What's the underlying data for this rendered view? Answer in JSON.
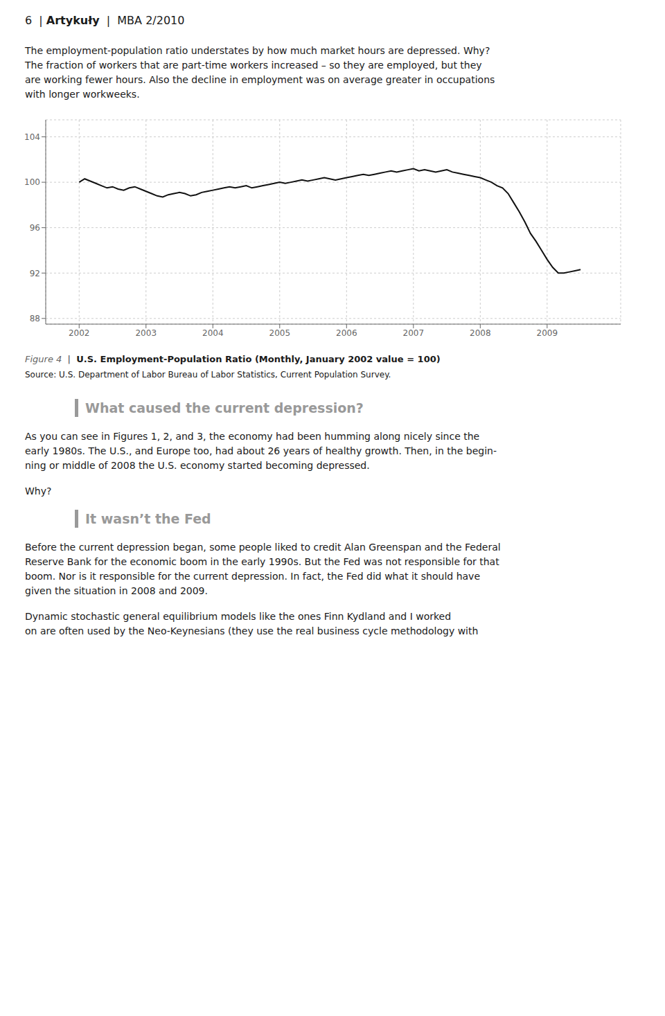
{
  "page_header": [
    "6  | ",
    "Artykuły",
    "  |  MBA 2/2010"
  ],
  "intro": [
    "The employment-population ratio understates by how much market hours are depressed. Why?",
    "The fraction of workers that are part-time workers increased – so they are employed, but they",
    "are working fewer hours. Also the decline in employment was on average greater in occupations",
    "with longer workweeks."
  ],
  "chart_data": {
    "type": "line",
    "x": [
      2002.0,
      2002.083,
      2002.167,
      2002.25,
      2002.333,
      2002.417,
      2002.5,
      2002.583,
      2002.667,
      2002.75,
      2002.833,
      2002.917,
      2003.0,
      2003.083,
      2003.167,
      2003.25,
      2003.333,
      2003.417,
      2003.5,
      2003.583,
      2003.667,
      2003.75,
      2003.833,
      2003.917,
      2004.0,
      2004.083,
      2004.167,
      2004.25,
      2004.333,
      2004.417,
      2004.5,
      2004.583,
      2004.667,
      2004.75,
      2004.833,
      2004.917,
      2005.0,
      2005.083,
      2005.167,
      2005.25,
      2005.333,
      2005.417,
      2005.5,
      2005.583,
      2005.667,
      2005.75,
      2005.833,
      2005.917,
      2006.0,
      2006.083,
      2006.167,
      2006.25,
      2006.333,
      2006.417,
      2006.5,
      2006.583,
      2006.667,
      2006.75,
      2006.833,
      2006.917,
      2007.0,
      2007.083,
      2007.167,
      2007.25,
      2007.333,
      2007.417,
      2007.5,
      2007.583,
      2007.667,
      2007.75,
      2007.833,
      2007.917,
      2008.0,
      2008.083,
      2008.167,
      2008.25,
      2008.333,
      2008.417,
      2008.5,
      2008.583,
      2008.667,
      2008.75,
      2008.833,
      2008.917,
      2009.0,
      2009.083,
      2009.167,
      2009.25,
      2009.333,
      2009.417,
      2009.5
    ],
    "values": [
      100.0,
      100.3,
      100.1,
      99.9,
      99.7,
      99.5,
      99.6,
      99.4,
      99.3,
      99.5,
      99.6,
      99.4,
      99.2,
      99.0,
      98.8,
      98.7,
      98.9,
      99.0,
      99.1,
      99.0,
      98.8,
      98.9,
      99.1,
      99.2,
      99.3,
      99.4,
      99.5,
      99.6,
      99.5,
      99.6,
      99.7,
      99.5,
      99.6,
      99.7,
      99.8,
      99.9,
      100.0,
      99.9,
      100.0,
      100.1,
      100.2,
      100.1,
      100.2,
      100.3,
      100.4,
      100.3,
      100.2,
      100.3,
      100.4,
      100.5,
      100.6,
      100.7,
      100.6,
      100.7,
      100.8,
      100.9,
      101.0,
      100.9,
      101.0,
      101.1,
      101.2,
      101.0,
      101.1,
      101.0,
      100.9,
      101.0,
      101.1,
      100.9,
      100.8,
      100.7,
      100.6,
      100.5,
      100.4,
      100.2,
      100.0,
      99.7,
      99.5,
      99.0,
      98.2,
      97.4,
      96.5,
      95.5,
      94.8,
      94.0,
      93.2,
      92.5,
      92.0,
      92.0,
      92.1,
      92.2,
      92.3
    ],
    "color": "#111111",
    "xlim": [
      2001.5,
      2010.1
    ],
    "xticks": [
      2002,
      2003,
      2004,
      2005,
      2006,
      2007,
      2008,
      2009
    ],
    "ylim": [
      87.5,
      105.5
    ],
    "yticks": [
      88,
      92,
      96,
      100,
      104
    ],
    "grid": true
  },
  "figure_caption": [
    "Figure 4",
    "  |  ",
    "U.S. Employment-Population Ratio (Monthly, January 2002 value = 100)"
  ],
  "figure_source": "Source: U.S. Department of Labor Bureau of Labor Statistics, Current Population Survey.",
  "section_color": "#999999",
  "sections": [
    {
      "title": "What caused the current depression?",
      "paragraphs": [
        [
          "As you can see in Figures 1, 2, and 3, the economy had been humming along nicely since the",
          "early 1980s. The U.S., and Europe too, had about 26 years of healthy growth. Then, in the begin-",
          "ning or middle of 2008 the U.S. economy started becoming depressed."
        ],
        [
          "Why?"
        ]
      ]
    },
    {
      "title": "It wasn’t the Fed",
      "paragraphs": [
        [
          "Before the current depression began, some people liked to credit Alan Greenspan and the Federal",
          "Reserve Bank for the economic boom in the early 1990s. But the Fed was not responsible for that",
          "boom. Nor is it responsible for the current depression. In fact, the Fed did what it should have",
          "given the situation in 2008 and 2009."
        ],
        [
          "Dynamic stochastic general equilibrium models like the ones Finn Kydland and I worked",
          "on are often used by the Neo-Keynesians (they use the real business cycle methodology with"
        ]
      ]
    }
  ]
}
